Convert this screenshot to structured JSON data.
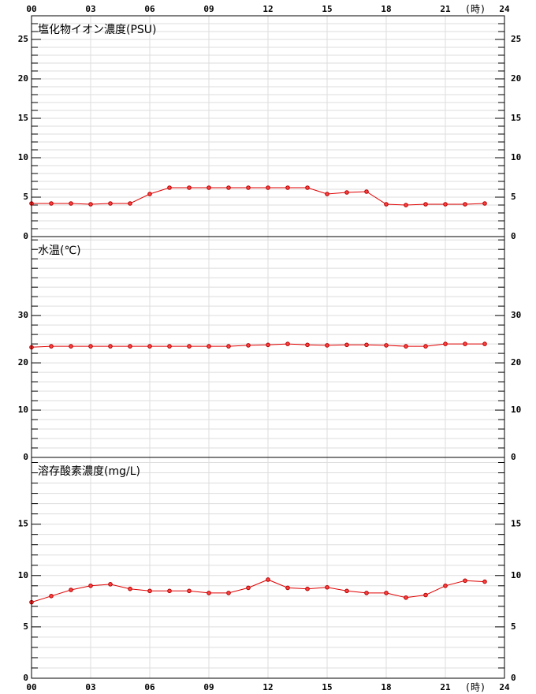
{
  "x_axis": {
    "xlim": [
      0,
      24
    ],
    "xticks": [
      {
        "value": 0,
        "label": "00"
      },
      {
        "value": 3,
        "label": "03"
      },
      {
        "value": 6,
        "label": "06"
      },
      {
        "value": 9,
        "label": "09"
      },
      12,
      15,
      18,
      21,
      24
    ],
    "unit_label": "(時)"
  },
  "chart_data": [
    {
      "type": "line",
      "title": "塩化物イオン濃度(PSU)",
      "color": "#e00000",
      "x": [
        0,
        1,
        2,
        3,
        4,
        5,
        6,
        7,
        8,
        9,
        10,
        11,
        12,
        13,
        14,
        15,
        16,
        17,
        18,
        19,
        20,
        21,
        22,
        23
      ],
      "values": [
        4.2,
        4.2,
        4.2,
        4.1,
        4.2,
        4.2,
        5.4,
        6.2,
        6.2,
        6.2,
        6.2,
        6.2,
        6.2,
        6.2,
        6.2,
        5.4,
        5.6,
        5.7,
        4.1,
        4.0,
        4.1,
        4.1,
        4.1,
        4.2
      ],
      "ylim": [
        0,
        28
      ],
      "yticks": [
        0,
        5,
        10,
        15,
        20,
        25
      ],
      "minor_yticks": [
        1,
        2,
        3,
        4,
        6,
        7,
        8,
        9,
        11,
        12,
        13,
        14,
        16,
        17,
        18,
        19,
        21,
        22,
        23,
        24,
        26,
        27
      ]
    },
    {
      "type": "line",
      "title": "水温(℃)",
      "color": "#e00000",
      "x": [
        0,
        1,
        2,
        3,
        4,
        5,
        6,
        7,
        8,
        9,
        10,
        11,
        12,
        13,
        14,
        15,
        16,
        17,
        18,
        19,
        20,
        21,
        22,
        23
      ],
      "values": [
        23.3,
        23.5,
        23.5,
        23.5,
        23.5,
        23.5,
        23.5,
        23.5,
        23.5,
        23.5,
        23.5,
        23.7,
        23.8,
        24.0,
        23.8,
        23.7,
        23.8,
        23.8,
        23.7,
        23.5,
        23.5,
        24.0,
        24.0,
        24.0
      ],
      "ylim": [
        0,
        46.7
      ],
      "yticks": [
        0,
        10,
        20,
        30
      ],
      "minor_yticks": [
        2,
        4,
        6,
        8,
        12,
        14,
        16,
        18,
        22,
        24,
        26,
        28,
        32,
        34,
        36,
        38,
        40,
        42,
        44,
        46
      ]
    },
    {
      "type": "line",
      "title": "溶存酸素濃度(mg/L)",
      "color": "#e00000",
      "x": [
        0,
        1,
        2,
        3,
        4,
        5,
        6,
        7,
        8,
        9,
        10,
        11,
        12,
        13,
        14,
        15,
        16,
        17,
        18,
        19,
        20,
        21,
        22,
        23
      ],
      "values": [
        7.4,
        8.0,
        8.6,
        9.0,
        9.15,
        8.7,
        8.5,
        8.5,
        8.5,
        8.3,
        8.3,
        8.8,
        9.6,
        8.8,
        8.7,
        8.85,
        8.5,
        8.3,
        8.3,
        7.85,
        8.1,
        9.0,
        9.5,
        9.4
      ],
      "ylim": [
        0,
        21.5
      ],
      "yticks": [
        0,
        5,
        10,
        15
      ],
      "minor_yticks": [
        1,
        2,
        3,
        4,
        6,
        7,
        8,
        9,
        11,
        12,
        13,
        14,
        16,
        17,
        18,
        19,
        20,
        21
      ]
    }
  ]
}
